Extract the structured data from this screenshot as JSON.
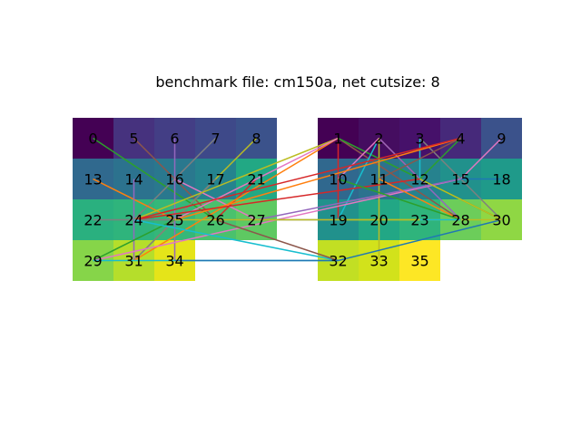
{
  "title": "benchmark file: cm150a, net cutsize: 8",
  "left_block": {
    "rows": [
      [
        {
          "id": "0",
          "color": "#440154"
        },
        {
          "id": "5",
          "color": "#46327e"
        },
        {
          "id": "6",
          "color": "#433e85"
        },
        {
          "id": "7",
          "color": "#3e4989"
        },
        {
          "id": "8",
          "color": "#3b528b"
        }
      ],
      [
        {
          "id": "13",
          "color": "#30698e"
        },
        {
          "id": "14",
          "color": "#2c728e"
        },
        {
          "id": "16",
          "color": "#2a788e"
        },
        {
          "id": "17",
          "color": "#25838e"
        },
        {
          "id": "21",
          "color": "#22a884"
        }
      ],
      [
        {
          "id": "22",
          "color": "#2ab07f"
        },
        {
          "id": "24",
          "color": "#2fb47c"
        },
        {
          "id": "25",
          "color": "#35b779"
        },
        {
          "id": "26",
          "color": "#4ac16d"
        },
        {
          "id": "27",
          "color": "#5ec962"
        }
      ],
      [
        {
          "id": "29",
          "color": "#86d549"
        },
        {
          "id": "31",
          "color": "#b5de2b"
        },
        {
          "id": "34",
          "color": "#e5e419"
        }
      ]
    ]
  },
  "right_block": {
    "rows": [
      [
        {
          "id": "1",
          "color": "#440154"
        },
        {
          "id": "2",
          "color": "#450d60"
        },
        {
          "id": "3",
          "color": "#46116a"
        },
        {
          "id": "4",
          "color": "#46297a"
        },
        {
          "id": "9",
          "color": "#3b528b"
        }
      ],
      [
        {
          "id": "10",
          "color": "#30688e"
        },
        {
          "id": "11",
          "color": "#2c728e"
        },
        {
          "id": "12",
          "color": "#26828e"
        },
        {
          "id": "15",
          "color": "#21918c"
        },
        {
          "id": "18",
          "color": "#1f9a8a"
        }
      ],
      [
        {
          "id": "19",
          "color": "#21918c"
        },
        {
          "id": "20",
          "color": "#22a785"
        },
        {
          "id": "23",
          "color": "#2fb47c"
        },
        {
          "id": "28",
          "color": "#6ccd5a"
        },
        {
          "id": "30",
          "color": "#8fd744"
        }
      ],
      [
        {
          "id": "32",
          "color": "#c2df23"
        },
        {
          "id": "33",
          "color": "#d2e21b"
        },
        {
          "id": "35",
          "color": "#fde725"
        }
      ]
    ]
  },
  "edges": [
    {
      "from": "0",
      "to": "26",
      "color": "#2ca02c"
    },
    {
      "from": "5",
      "to": "26",
      "color": "#8c564b"
    },
    {
      "from": "6",
      "to": "34",
      "color": "#9467bd"
    },
    {
      "from": "7",
      "to": "24",
      "color": "#7f7f7f"
    },
    {
      "from": "8",
      "to": "31",
      "color": "#bcbd22"
    },
    {
      "from": "13",
      "to": "25",
      "color": "#ff7f0e"
    },
    {
      "from": "14",
      "to": "31",
      "color": "#9467bd"
    },
    {
      "from": "16",
      "to": "27",
      "color": "#e377c2"
    },
    {
      "from": "17",
      "to": "31",
      "color": "#7f7f7f"
    },
    {
      "from": "21",
      "to": "29",
      "color": "#2ca02c"
    },
    {
      "from": "21",
      "to": "26",
      "color": "#d62728"
    },
    {
      "from": "1",
      "to": "31",
      "color": "#ff7f0e"
    },
    {
      "from": "1",
      "to": "24",
      "color": "#bcbd22"
    },
    {
      "from": "1",
      "to": "25",
      "color": "#e377c2"
    },
    {
      "from": "1",
      "to": "19",
      "color": "#d62728"
    },
    {
      "from": "1",
      "to": "28",
      "color": "#8c564b"
    },
    {
      "from": "1",
      "to": "30",
      "color": "#2ca02c"
    },
    {
      "from": "2",
      "to": "19",
      "color": "#17becf"
    },
    {
      "from": "2",
      "to": "12",
      "color": "#d62728"
    },
    {
      "from": "2",
      "to": "28",
      "color": "#9467bd"
    },
    {
      "from": "2",
      "to": "10",
      "color": "#e377c2"
    },
    {
      "from": "2",
      "to": "33",
      "color": "#bcbd22"
    },
    {
      "from": "3",
      "to": "12",
      "color": "#17becf"
    },
    {
      "from": "3",
      "to": "30",
      "color": "#7f7f7f"
    },
    {
      "from": "4",
      "to": "25",
      "color": "#ff7f0e"
    },
    {
      "from": "4",
      "to": "24",
      "color": "#d62728"
    },
    {
      "from": "4",
      "to": "12",
      "color": "#2ca02c"
    },
    {
      "from": "4",
      "to": "11",
      "color": "#8c564b"
    },
    {
      "from": "9",
      "to": "15",
      "color": "#e377c2"
    },
    {
      "from": "15",
      "to": "18",
      "color": "#1f77b4"
    },
    {
      "from": "15",
      "to": "29",
      "color": "#e377c2"
    },
    {
      "from": "15",
      "to": "27",
      "color": "#9467bd"
    },
    {
      "from": "12",
      "to": "24",
      "color": "#d62728"
    },
    {
      "from": "12",
      "to": "30",
      "color": "#bcbd22"
    },
    {
      "from": "11",
      "to": "28",
      "color": "#ff7f0e"
    },
    {
      "from": "10",
      "to": "28",
      "color": "#2ca02c"
    },
    {
      "from": "22",
      "to": "19",
      "color": "#7f7f7f"
    },
    {
      "from": "24",
      "to": "32",
      "color": "#17becf"
    },
    {
      "from": "26",
      "to": "32",
      "color": "#8c564b"
    },
    {
      "from": "29",
      "to": "32",
      "color": "#17becf"
    },
    {
      "from": "34",
      "to": "32",
      "color": "#1f77b4"
    },
    {
      "from": "25",
      "to": "23",
      "color": "#bcbd22"
    },
    {
      "from": "32",
      "to": "30",
      "color": "#1f77b4"
    },
    {
      "from": "19",
      "to": "30",
      "color": "#bcbd22"
    },
    {
      "from": "23",
      "to": "28",
      "color": "#17becf"
    }
  ]
}
